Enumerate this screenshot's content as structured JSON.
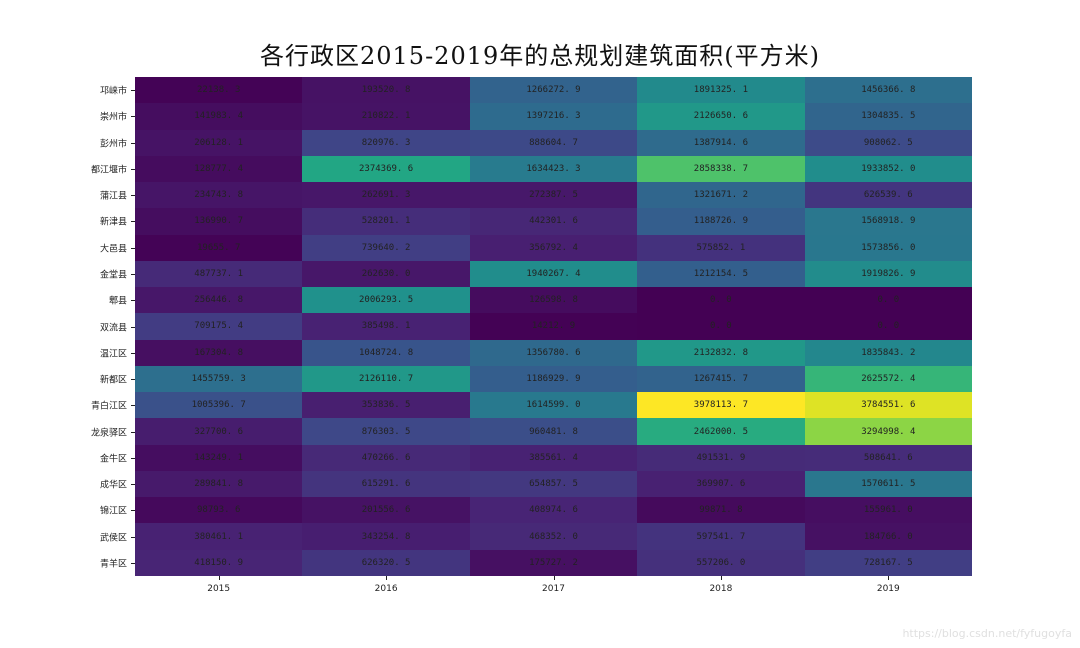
{
  "title": "各行政区2015-2019年的总规划建筑面积(平方米)",
  "watermark": "https://blog.csdn.net/fyfugoyfa",
  "chart_data": {
    "type": "heatmap",
    "title": "各行政区2015-2019年的总规划建筑面积(平方米)",
    "xlabel": "",
    "ylabel": "",
    "colormap": "viridis",
    "vmin": 0.0,
    "vmax": 3978113.7,
    "x": [
      "2015",
      "2016",
      "2017",
      "2018",
      "2019"
    ],
    "y": [
      "邛崃市",
      "崇州市",
      "彭州市",
      "都江堰市",
      "蒲江县",
      "新津县",
      "大邑县",
      "金堂县",
      "郫县",
      "双流县",
      "温江区",
      "新都区",
      "青白江区",
      "龙泉驿区",
      "金牛区",
      "成华区",
      "锦江区",
      "武侯区",
      "青羊区"
    ],
    "values": [
      [
        22138.3,
        193520.8,
        1266272.9,
        1891325.1,
        1456366.8
      ],
      [
        141983.4,
        210822.1,
        1397216.3,
        2126650.6,
        1304835.5
      ],
      [
        206128.1,
        820976.3,
        888604.7,
        1387914.6,
        908062.5
      ],
      [
        128777.4,
        2374369.6,
        1634423.3,
        2858338.7,
        1933852.0
      ],
      [
        234743.8,
        262691.3,
        272387.5,
        1321671.2,
        626539.6
      ],
      [
        136990.7,
        528201.1,
        442301.6,
        1188726.9,
        1568918.9
      ],
      [
        19655.7,
        739640.2,
        356792.4,
        575852.1,
        1573856.0
      ],
      [
        487737.1,
        262630.0,
        1940267.4,
        1212154.5,
        1919826.9
      ],
      [
        256446.8,
        2006293.5,
        126598.8,
        0.0,
        0.0
      ],
      [
        709175.4,
        385498.1,
        14212.9,
        0.0,
        0.0
      ],
      [
        167304.8,
        1048724.8,
        1356780.6,
        2132832.8,
        1835843.2
      ],
      [
        1455759.3,
        2126110.7,
        1186929.9,
        1267415.7,
        2625572.4
      ],
      [
        1005396.7,
        353836.5,
        1614599.0,
        3978113.7,
        3784551.6
      ],
      [
        327700.6,
        876303.5,
        960481.8,
        2462000.5,
        3294998.4
      ],
      [
        143249.1,
        470266.6,
        385561.4,
        491531.9,
        508641.6
      ],
      [
        289841.8,
        615291.6,
        654857.5,
        369907.6,
        1570611.5
      ],
      [
        98793.6,
        201556.6,
        408974.6,
        99871.8,
        155961.0
      ],
      [
        380461.1,
        343254.8,
        468352.0,
        597541.7,
        184766.0
      ],
      [
        418150.9,
        626320.5,
        175727.2,
        557206.0,
        728167.5
      ]
    ],
    "annotations_format": "%.1f (digit groups spaced, e.g. '22138. 3')",
    "grid": false,
    "legend": "none"
  }
}
